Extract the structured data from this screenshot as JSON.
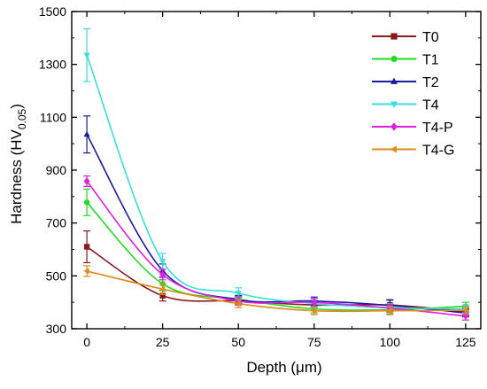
{
  "chart_data": {
    "type": "line",
    "title": "",
    "xlabel": "Depth (μm)",
    "ylabel_main": "Hardness (HV",
    "ylabel_sub": "0.05",
    "ylabel_close": ")",
    "x": [
      0,
      25,
      50,
      75,
      100,
      125
    ],
    "xlim": [
      -5,
      130
    ],
    "ylim": [
      300,
      1500
    ],
    "xticks": [
      0,
      25,
      50,
      75,
      100,
      125
    ],
    "yticks": [
      300,
      500,
      700,
      900,
      1100,
      1300,
      1500
    ],
    "legend_position": "top-right",
    "grid": false,
    "series": [
      {
        "name": "T0",
        "color": "#8B1A1A",
        "marker": "square",
        "values": [
          610,
          425,
          405,
          390,
          390,
          365
        ],
        "errors": [
          60,
          20,
          15,
          15,
          20,
          15
        ]
      },
      {
        "name": "T1",
        "color": "#22DD22",
        "marker": "circle",
        "values": [
          778,
          470,
          412,
          375,
          372,
          385
        ],
        "errors": [
          50,
          25,
          15,
          15,
          15,
          15
        ]
      },
      {
        "name": "T2",
        "color": "#1A1AA6",
        "marker": "triangle-up",
        "values": [
          1035,
          520,
          410,
          405,
          388,
          360
        ],
        "errors": [
          70,
          25,
          15,
          15,
          20,
          15
        ]
      },
      {
        "name": "T4",
        "color": "#3ADDDD",
        "marker": "triangle-down",
        "values": [
          1335,
          555,
          435,
          395,
          380,
          375
        ],
        "errors": [
          100,
          30,
          20,
          15,
          15,
          15
        ]
      },
      {
        "name": "T4-P",
        "color": "#E020E0",
        "marker": "diamond",
        "values": [
          858,
          505,
          405,
          400,
          378,
          348
        ],
        "errors": [
          20,
          20,
          15,
          15,
          15,
          15
        ]
      },
      {
        "name": "T4-G",
        "color": "#E08A1E",
        "marker": "triangle-left",
        "values": [
          518,
          450,
          395,
          368,
          368,
          370
        ],
        "errors": [
          20,
          20,
          15,
          15,
          15,
          15
        ]
      }
    ]
  }
}
